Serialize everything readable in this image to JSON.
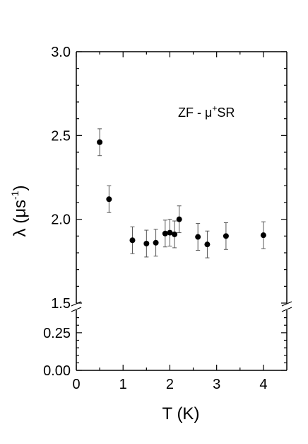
{
  "chart_data": {
    "type": "scatter",
    "title": "",
    "xlabel": "T (K)",
    "ylabel_symbol": "λ (μs",
    "ylabel_exponent": "-1",
    "ylabel_close": ")",
    "annotation": {
      "prefix": "ZF - μ",
      "superscript": "+",
      "suffix": "SR"
    },
    "xlim": [
      0,
      4.5
    ],
    "x_ticks": [
      0,
      1,
      2,
      3,
      4
    ],
    "x_tick_labels": [
      "0",
      "1",
      "2",
      "3",
      "4"
    ],
    "y_axis_break": true,
    "y_lower_range": [
      0.0,
      0.4
    ],
    "y_lower_ticks": [
      0.0,
      0.25
    ],
    "y_lower_tick_labels": [
      "0.00",
      "0.25"
    ],
    "y_upper_range": [
      1.5,
      3.0
    ],
    "y_upper_ticks": [
      1.5,
      2.0,
      2.5,
      3.0
    ],
    "y_upper_tick_labels": [
      "1.5",
      "2.0",
      "2.5",
      "3.0"
    ],
    "series": [
      {
        "points": [
          {
            "x": 0.5,
            "y": 2.46,
            "err": 0.08
          },
          {
            "x": 0.7,
            "y": 2.12,
            "err": 0.08
          },
          {
            "x": 1.2,
            "y": 1.875,
            "err": 0.08
          },
          {
            "x": 1.5,
            "y": 1.855,
            "err": 0.08
          },
          {
            "x": 1.7,
            "y": 1.86,
            "err": 0.08
          },
          {
            "x": 1.9,
            "y": 1.915,
            "err": 0.08
          },
          {
            "x": 2.0,
            "y": 1.92,
            "err": 0.08
          },
          {
            "x": 2.1,
            "y": 1.91,
            "err": 0.08
          },
          {
            "x": 2.2,
            "y": 2.0,
            "err": 0.08
          },
          {
            "x": 2.6,
            "y": 1.895,
            "err": 0.08
          },
          {
            "x": 2.8,
            "y": 1.85,
            "err": 0.08
          },
          {
            "x": 3.2,
            "y": 1.9,
            "err": 0.08
          },
          {
            "x": 4.0,
            "y": 1.905,
            "err": 0.08
          }
        ]
      }
    ],
    "colors": {
      "marker": "#000000",
      "axis": "#000000"
    }
  }
}
